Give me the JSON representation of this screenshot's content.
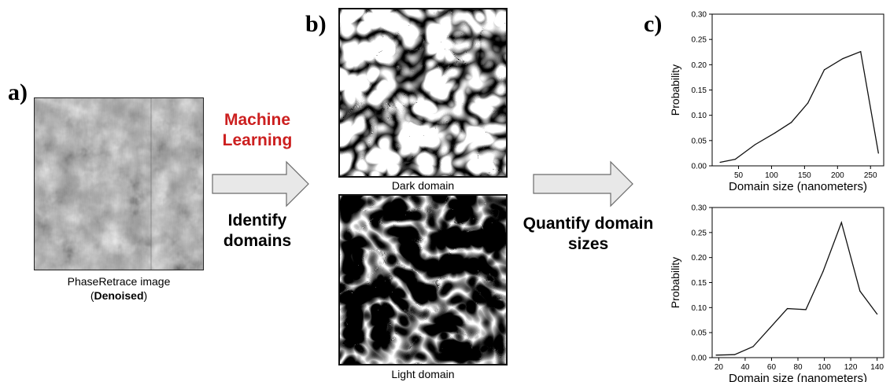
{
  "panels": {
    "a": {
      "label": "a)",
      "caption_line1": "PhaseRetrace image",
      "caption_open": "(",
      "caption_bold": "Denoised",
      "caption_close": ")"
    },
    "b": {
      "label": "b)",
      "dark_caption": "Dark domain",
      "light_caption": "Light domain"
    },
    "c": {
      "label": "c)"
    }
  },
  "step1": {
    "ml_line1": "Machine",
    "ml_line2": "Learning",
    "ml_color": "#cc1f1f",
    "id_line1": "Identify",
    "id_line2": "domains"
  },
  "step2": {
    "line1": "Quantify domain",
    "line2": "sizes"
  },
  "colors": {
    "arrow_fill": "#e8e8e8",
    "arrow_stroke": "#6b6b6b",
    "line": "#111111"
  },
  "chart_data": [
    {
      "type": "line",
      "xlabel": "Domain size (nanometers)",
      "ylabel": "Probability",
      "xlim": [
        10,
        270
      ],
      "ylim": [
        0,
        0.3
      ],
      "xticks": [
        50,
        100,
        150,
        200,
        250
      ],
      "xticklabels": [
        "50",
        "100",
        "150",
        "200",
        "250"
      ],
      "yticks": [
        0,
        0.05,
        0.1,
        0.15,
        0.2,
        0.25,
        0.3
      ],
      "yticklabels": [
        "0.00",
        "0.05",
        "0.10",
        "0.15",
        "0.20",
        "0.25",
        "0.30"
      ],
      "x": [
        22,
        45,
        75,
        105,
        130,
        155,
        180,
        208,
        235,
        262
      ],
      "y": [
        0.007,
        0.013,
        0.042,
        0.065,
        0.086,
        0.124,
        0.19,
        0.212,
        0.226,
        0.025
      ]
    },
    {
      "type": "line",
      "xlabel": "Domain size (nanometers)",
      "ylabel": "Probability",
      "xlim": [
        15,
        145
      ],
      "ylim": [
        0,
        0.3
      ],
      "xticks": [
        20,
        40,
        60,
        80,
        100,
        120,
        140
      ],
      "xticklabels": [
        "20",
        "40",
        "60",
        "80",
        "100",
        "120",
        "140"
      ],
      "yticks": [
        0,
        0.05,
        0.1,
        0.15,
        0.2,
        0.25,
        0.3
      ],
      "yticklabels": [
        "0.00",
        "0.05",
        "0.10",
        "0.15",
        "0.20",
        "0.25",
        "0.30"
      ],
      "x": [
        18,
        32,
        46,
        59,
        72,
        86,
        99,
        113,
        127,
        140
      ],
      "y": [
        0.005,
        0.006,
        0.022,
        0.06,
        0.098,
        0.096,
        0.172,
        0.27,
        0.133,
        0.087
      ]
    }
  ]
}
